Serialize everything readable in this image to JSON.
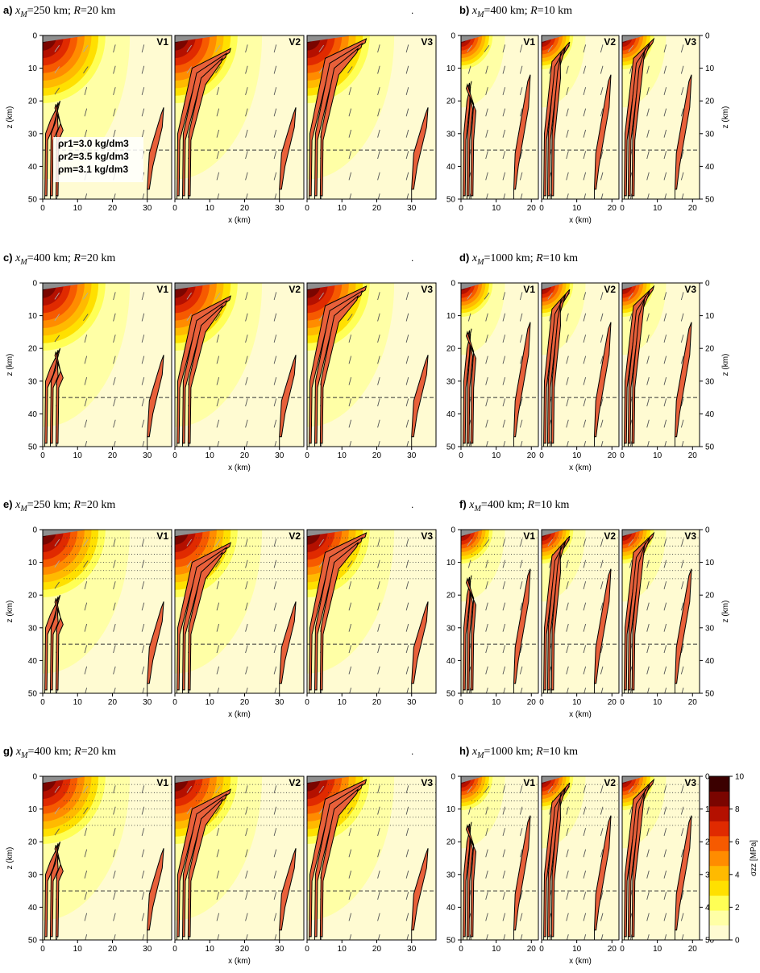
{
  "chart_data": {
    "type": "contour-map",
    "x_unit_label": "x (km)",
    "y_unit_label": "z (km)",
    "colorbar": {
      "label": "σzz [MPa]",
      "range": [
        0,
        10
      ],
      "ticks": [
        "0",
        "2",
        "4",
        "6",
        "8",
        "10"
      ],
      "colors": [
        "#FFFBD2",
        "#FFFFA6",
        "#FFFF55",
        "#FFE000",
        "#FFBA00",
        "#FF8C00",
        "#F65A00",
        "#E02A00",
        "#B41000",
        "#7A0500",
        "#3B0000"
      ]
    },
    "density_legend": [
      "ρr1=3.0 kg/dm3",
      "ρr2=3.5 kg/dm3",
      "ρm=3.1 kg/dm3"
    ],
    "moho_depth_km": 35,
    "panel_labels": [
      "V1",
      "V2",
      "V3"
    ],
    "panels": [
      {
        "letter": "a)",
        "xM": "250 km",
        "R": "20 km",
        "xlim": [
          0,
          37
        ],
        "xticks": [
          0,
          10,
          20,
          30
        ],
        "ylim": [
          0,
          50
        ],
        "yticks": [
          0,
          10,
          20,
          30,
          40,
          50
        ],
        "layered": false,
        "dot": true,
        "stress_extent_km": 20
      },
      {
        "letter": "b)",
        "xM": "400 km",
        "R": "10 km",
        "xlim": [
          0,
          22
        ],
        "xticks": [
          0,
          10,
          20
        ],
        "ylim": [
          0,
          50
        ],
        "yticks": [
          0,
          10,
          20,
          30,
          40,
          50
        ],
        "layered": false,
        "dot": false,
        "stress_extent_km": 10
      },
      {
        "letter": "c)",
        "xM": "400 km",
        "R": "20 km",
        "xlim": [
          0,
          37
        ],
        "xticks": [
          0,
          10,
          20,
          30
        ],
        "ylim": [
          0,
          50
        ],
        "yticks": [
          0,
          10,
          20,
          30,
          40,
          50
        ],
        "layered": false,
        "dot": true,
        "stress_extent_km": 20
      },
      {
        "letter": "d)",
        "xM": "1000 km",
        "R": "10 km",
        "xlim": [
          0,
          22
        ],
        "xticks": [
          0,
          10,
          20
        ],
        "ylim": [
          0,
          50
        ],
        "yticks": [
          0,
          10,
          20,
          30,
          40,
          50
        ],
        "layered": false,
        "dot": false,
        "stress_extent_km": 10
      },
      {
        "letter": "e)",
        "xM": "250 km",
        "R": "20 km",
        "xlim": [
          0,
          37
        ],
        "xticks": [
          0,
          10,
          20,
          30
        ],
        "ylim": [
          0,
          50
        ],
        "yticks": [
          0,
          10,
          20,
          30,
          40,
          50
        ],
        "layered": true,
        "dot": true,
        "stress_extent_km": 20
      },
      {
        "letter": "f)",
        "xM": "400 km",
        "R": "10 km",
        "xlim": [
          0,
          22
        ],
        "xticks": [
          0,
          10,
          20
        ],
        "ylim": [
          0,
          50
        ],
        "yticks": [
          0,
          10,
          20,
          30,
          40,
          50
        ],
        "layered": true,
        "dot": false,
        "stress_extent_km": 10
      },
      {
        "letter": "g)",
        "xM": "400 km",
        "R": "20 km",
        "xlim": [
          0,
          37
        ],
        "xticks": [
          0,
          10,
          20,
          30
        ],
        "ylim": [
          0,
          50
        ],
        "yticks": [
          0,
          10,
          20,
          30,
          40,
          50
        ],
        "layered": true,
        "dot": true,
        "stress_extent_km": 20
      },
      {
        "letter": "h)",
        "xM": "1000 km",
        "R": "10 km",
        "xlim": [
          0,
          22
        ],
        "xticks": [
          0,
          10,
          20
        ],
        "ylim": [
          0,
          50
        ],
        "yticks": [
          0,
          10,
          20,
          30,
          40,
          50
        ],
        "layered": true,
        "dot": false,
        "stress_extent_km": 10
      }
    ]
  }
}
